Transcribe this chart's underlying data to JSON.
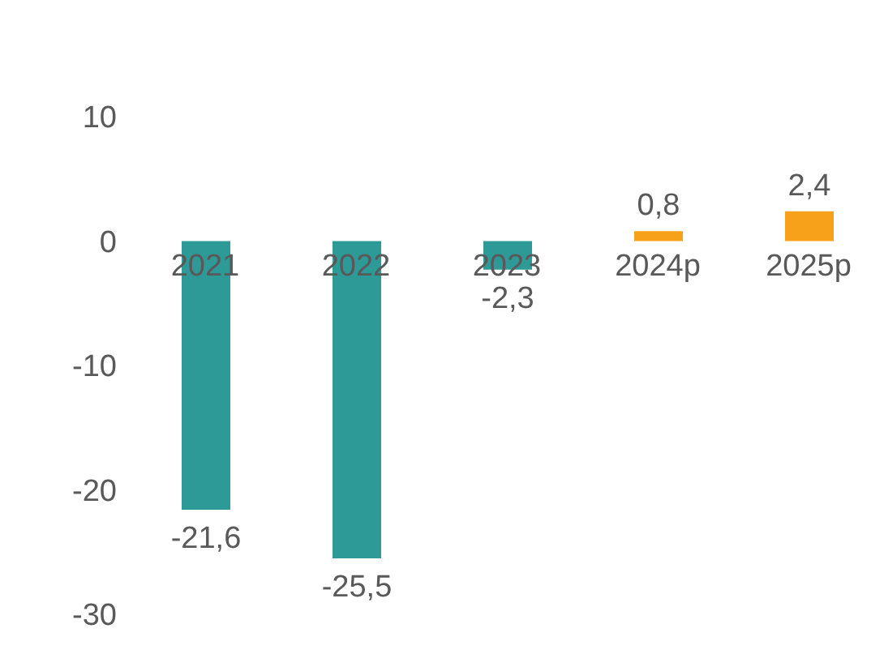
{
  "chart_data": {
    "type": "bar",
    "categories": [
      "2021",
      "2022",
      "2023",
      "2024p",
      "2025p"
    ],
    "values": [
      -21.6,
      -25.5,
      -2.3,
      0.8,
      2.4
    ],
    "colors": [
      "#2e9a98",
      "#2e9a98",
      "#2e9a98",
      "#f7a11a",
      "#f7a11a"
    ],
    "value_labels": [
      "-21,6",
      "-25,5",
      "-2,3",
      "0,8",
      "2,4"
    ],
    "ylim": [
      -30,
      10
    ],
    "yticks": [
      -30,
      -20,
      -10,
      0,
      10
    ]
  }
}
